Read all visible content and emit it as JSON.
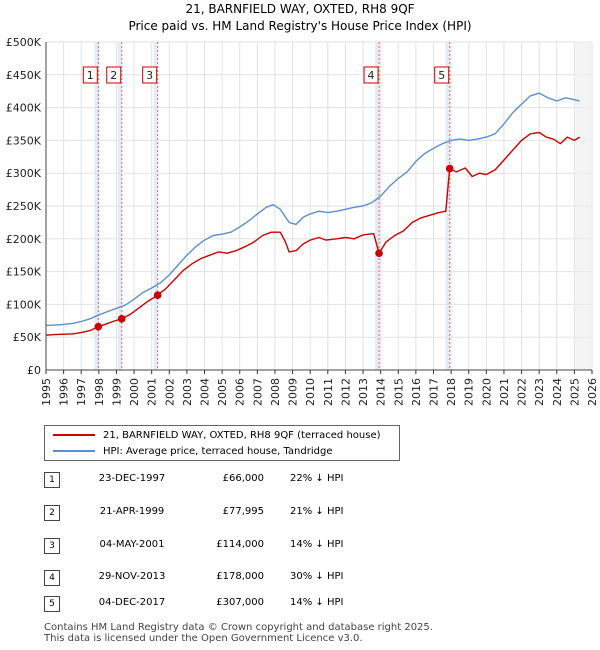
{
  "chart_data": {
    "type": "line",
    "title": "21, BARNFIELD WAY, OXTED, RH8 9QF",
    "subtitle": "Price paid vs. HM Land Registry's House Price Index (HPI)",
    "xlim": [
      1995,
      2026
    ],
    "ylim": [
      0,
      500000
    ],
    "y_ticks": [
      {
        "value": 0,
        "label": "£0"
      },
      {
        "value": 50000,
        "label": "£50K"
      },
      {
        "value": 100000,
        "label": "£100K"
      },
      {
        "value": 150000,
        "label": "£150K"
      },
      {
        "value": 200000,
        "label": "£200K"
      },
      {
        "value": 250000,
        "label": "£250K"
      },
      {
        "value": 300000,
        "label": "£300K"
      },
      {
        "value": 350000,
        "label": "£350K"
      },
      {
        "value": 400000,
        "label": "£400K"
      },
      {
        "value": 450000,
        "label": "£450K"
      },
      {
        "value": 500000,
        "label": "£500K"
      }
    ],
    "x_ticks": [
      "1995",
      "1996",
      "1997",
      "1998",
      "1999",
      "2000",
      "2001",
      "2002",
      "2003",
      "2004",
      "2005",
      "2006",
      "2007",
      "2008",
      "2009",
      "2010",
      "2011",
      "2012",
      "2013",
      "2014",
      "2015",
      "2016",
      "2017",
      "2018",
      "2019",
      "2020",
      "2021",
      "2022",
      "2023",
      "2024",
      "2025",
      "2026"
    ],
    "series": [
      {
        "name": "21, BARNFIELD WAY, OXTED, RH8 9QF (terraced house)",
        "color": "#cc0000",
        "points": [
          [
            1995.0,
            53000
          ],
          [
            1995.5,
            54000
          ],
          [
            1996.0,
            54500
          ],
          [
            1996.5,
            55000
          ],
          [
            1997.0,
            57000
          ],
          [
            1997.5,
            60000
          ],
          [
            1997.97,
            66000
          ],
          [
            1998.3,
            69000
          ],
          [
            1998.8,
            74000
          ],
          [
            1999.3,
            78000
          ],
          [
            1999.8,
            85000
          ],
          [
            2000.3,
            95000
          ],
          [
            2000.8,
            105000
          ],
          [
            2001.33,
            114000
          ],
          [
            2001.8,
            124000
          ],
          [
            2002.3,
            138000
          ],
          [
            2002.8,
            152000
          ],
          [
            2003.3,
            162000
          ],
          [
            2003.8,
            170000
          ],
          [
            2004.3,
            175000
          ],
          [
            2004.8,
            180000
          ],
          [
            2005.3,
            178000
          ],
          [
            2005.8,
            182000
          ],
          [
            2006.3,
            188000
          ],
          [
            2006.8,
            195000
          ],
          [
            2007.3,
            205000
          ],
          [
            2007.8,
            210000
          ],
          [
            2008.3,
            210000
          ],
          [
            2008.6,
            195000
          ],
          [
            2008.8,
            180000
          ],
          [
            2009.2,
            182000
          ],
          [
            2009.6,
            192000
          ],
          [
            2010.0,
            198000
          ],
          [
            2010.5,
            202000
          ],
          [
            2010.9,
            198000
          ],
          [
            2011.5,
            200000
          ],
          [
            2012.0,
            202000
          ],
          [
            2012.5,
            200000
          ],
          [
            2013.0,
            206000
          ],
          [
            2013.6,
            208000
          ],
          [
            2013.91,
            178000
          ],
          [
            2014.3,
            195000
          ],
          [
            2014.8,
            205000
          ],
          [
            2015.3,
            212000
          ],
          [
            2015.8,
            225000
          ],
          [
            2016.3,
            232000
          ],
          [
            2016.8,
            236000
          ],
          [
            2017.3,
            240000
          ],
          [
            2017.7,
            242000
          ],
          [
            2017.92,
            307000
          ],
          [
            2018.3,
            302000
          ],
          [
            2018.8,
            308000
          ],
          [
            2019.2,
            295000
          ],
          [
            2019.6,
            300000
          ],
          [
            2020.0,
            298000
          ],
          [
            2020.5,
            305000
          ],
          [
            2021.0,
            320000
          ],
          [
            2021.5,
            335000
          ],
          [
            2022.0,
            350000
          ],
          [
            2022.5,
            360000
          ],
          [
            2023.0,
            362000
          ],
          [
            2023.4,
            355000
          ],
          [
            2023.8,
            352000
          ],
          [
            2024.2,
            345000
          ],
          [
            2024.6,
            355000
          ],
          [
            2025.0,
            350000
          ],
          [
            2025.3,
            355000
          ]
        ]
      },
      {
        "name": "HPI: Average price, terraced house, Tandridge",
        "color": "#5b8fd0",
        "points": [
          [
            1995.0,
            68000
          ],
          [
            1995.5,
            68500
          ],
          [
            1996.0,
            69500
          ],
          [
            1996.5,
            71000
          ],
          [
            1997.0,
            74000
          ],
          [
            1997.5,
            78000
          ],
          [
            1998.0,
            84000
          ],
          [
            1998.5,
            89000
          ],
          [
            1999.0,
            94000
          ],
          [
            1999.5,
            99000
          ],
          [
            2000.0,
            108000
          ],
          [
            2000.5,
            118000
          ],
          [
            2001.0,
            125000
          ],
          [
            2001.5,
            133000
          ],
          [
            2002.0,
            145000
          ],
          [
            2002.5,
            160000
          ],
          [
            2003.0,
            175000
          ],
          [
            2003.5,
            188000
          ],
          [
            2004.0,
            198000
          ],
          [
            2004.5,
            205000
          ],
          [
            2005.0,
            207000
          ],
          [
            2005.5,
            210000
          ],
          [
            2006.0,
            218000
          ],
          [
            2006.5,
            227000
          ],
          [
            2007.0,
            238000
          ],
          [
            2007.5,
            248000
          ],
          [
            2007.9,
            252000
          ],
          [
            2008.3,
            245000
          ],
          [
            2008.8,
            225000
          ],
          [
            2009.2,
            222000
          ],
          [
            2009.6,
            233000
          ],
          [
            2010.0,
            238000
          ],
          [
            2010.5,
            242000
          ],
          [
            2011.0,
            240000
          ],
          [
            2011.5,
            242000
          ],
          [
            2012.0,
            245000
          ],
          [
            2012.5,
            248000
          ],
          [
            2013.0,
            250000
          ],
          [
            2013.5,
            255000
          ],
          [
            2014.0,
            265000
          ],
          [
            2014.5,
            280000
          ],
          [
            2015.0,
            292000
          ],
          [
            2015.5,
            302000
          ],
          [
            2016.0,
            318000
          ],
          [
            2016.5,
            330000
          ],
          [
            2017.0,
            338000
          ],
          [
            2017.5,
            345000
          ],
          [
            2018.0,
            350000
          ],
          [
            2018.5,
            352000
          ],
          [
            2019.0,
            350000
          ],
          [
            2019.5,
            352000
          ],
          [
            2020.0,
            355000
          ],
          [
            2020.5,
            360000
          ],
          [
            2021.0,
            375000
          ],
          [
            2021.5,
            392000
          ],
          [
            2022.0,
            405000
          ],
          [
            2022.5,
            418000
          ],
          [
            2023.0,
            422000
          ],
          [
            2023.5,
            415000
          ],
          [
            2024.0,
            410000
          ],
          [
            2024.5,
            415000
          ],
          [
            2025.0,
            412000
          ],
          [
            2025.3,
            410000
          ]
        ]
      }
    ],
    "sales": [
      {
        "label": "1",
        "year": 1997.97,
        "price": 66000
      },
      {
        "label": "2",
        "year": 1999.3,
        "price": 77995
      },
      {
        "label": "3",
        "year": 2001.34,
        "price": 114000
      },
      {
        "label": "4",
        "year": 2013.91,
        "price": 178000
      },
      {
        "label": "5",
        "year": 2017.92,
        "price": 307000
      }
    ],
    "colors": {
      "property": "#cc0000",
      "hpi": "#5b8fd0",
      "shade": "#dce6f5",
      "vline": "#e06666"
    }
  },
  "legend": {
    "property_label": "21, BARNFIELD WAY, OXTED, RH8 9QF (terraced house)",
    "hpi_label": "HPI: Average price, terraced house, Tandridge"
  },
  "sales_table": [
    {
      "num": "1",
      "date": "23-DEC-1997",
      "price": "£66,000",
      "hpi": "22% ↓ HPI"
    },
    {
      "num": "2",
      "date": "21-APR-1999",
      "price": "£77,995",
      "hpi": "21% ↓ HPI"
    },
    {
      "num": "3",
      "date": "04-MAY-2001",
      "price": "£114,000",
      "hpi": "14% ↓ HPI"
    },
    {
      "num": "4",
      "date": "29-NOV-2013",
      "price": "£178,000",
      "hpi": "30% ↓ HPI"
    },
    {
      "num": "5",
      "date": "04-DEC-2017",
      "price": "£307,000",
      "hpi": "14% ↓ HPI"
    }
  ],
  "footer": {
    "line1": "Contains HM Land Registry data © Crown copyright and database right 2025.",
    "line2": "This data is licensed under the Open Government Licence v3.0."
  }
}
